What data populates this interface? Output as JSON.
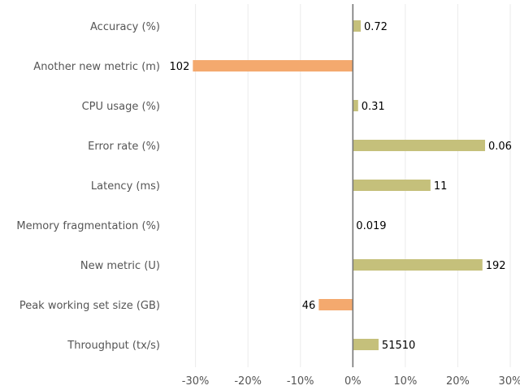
{
  "chart_data": {
    "type": "bar",
    "orientation": "horizontal",
    "categories": [
      "Accuracy (%)",
      "Another new metric (m)",
      "CPU usage (%)",
      "Error rate (%)",
      "Latency (ms)",
      "Memory fragmentation (%)",
      "New metric (U)",
      "Peak working set size (GB)",
      "Throughput (tx/s)"
    ],
    "values": [
      1.5,
      -30.5,
      1.0,
      25.2,
      14.8,
      0.0,
      24.7,
      -6.5,
      4.9
    ],
    "value_labels": [
      "0.72",
      "102",
      "0.31",
      "0.06",
      "11",
      "0.019",
      "192",
      "46",
      "51510"
    ],
    "xlim": [
      -33.5,
      30
    ],
    "x_ticks": [
      -30,
      -20,
      -10,
      0,
      10,
      20,
      30
    ],
    "x_tick_labels": [
      "-30%",
      "-20%",
      "-10%",
      "0%",
      "10%",
      "20%",
      "30%"
    ],
    "xlabel": "",
    "ylabel": "",
    "grid": "vertical",
    "colors": {
      "positive": "#c5c07b",
      "negative": "#f4a96e",
      "zero_line": "#777777",
      "grid": "#ebebeb"
    }
  }
}
